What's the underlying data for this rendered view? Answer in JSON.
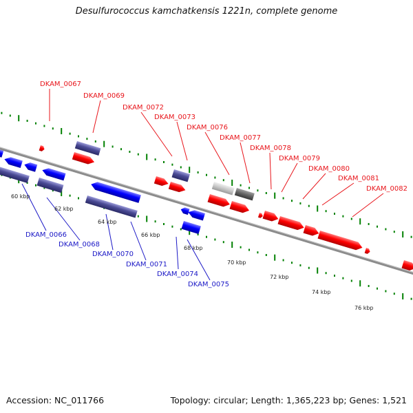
{
  "header": {
    "title": "Desulfurococcus kamchatkensis 1221n, complete genome"
  },
  "footer": {
    "accession": "Accession: NC_011766",
    "stats": "Topology: circular; Length: 1,365,223 bp; Genes: 1,521"
  },
  "colors": {
    "forward_gene": "#ff0000",
    "reverse_gene": "#0000ff",
    "rna_gene": "#4b4b96",
    "pseudo_light": "#c8c8c8",
    "pseudo_dark": "#646464",
    "tick": "#008000",
    "backbone": "#8c8c8c",
    "label_top": "#e8141a",
    "label_bottom": "#1a17c6"
  },
  "top_labels": [
    "DKAM_0067",
    "DKAM_0069",
    "DKAM_0072",
    "DKAM_0073",
    "DKAM_0076",
    "DKAM_0077",
    "DKAM_0078",
    "DKAM_0079",
    "DKAM_0080",
    "DKAM_0081",
    "DKAM_0082"
  ],
  "bottom_labels": [
    "DKAM_0066",
    "DKAM_0068",
    "DKAM_0070",
    "DKAM_0071",
    "DKAM_0074",
    "DKAM_0075"
  ],
  "kbp_labels": [
    "60 kbp",
    "62 kbp",
    "64 kbp",
    "66 kbp",
    "68 kbp",
    "70 kbp",
    "72 kbp",
    "74 kbp",
    "76 kbp"
  ]
}
